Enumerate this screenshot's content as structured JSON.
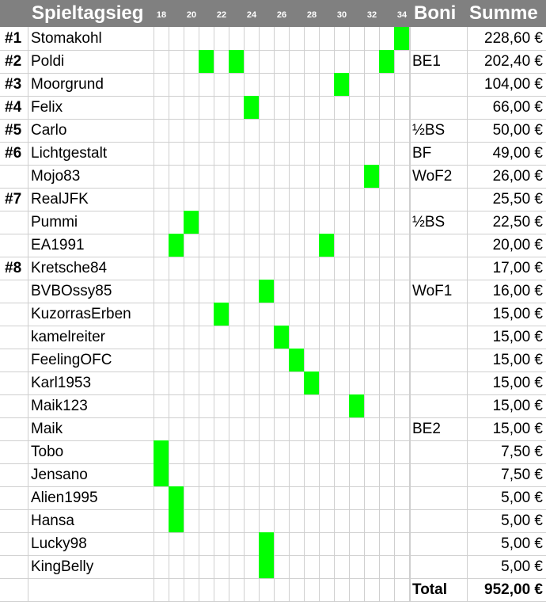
{
  "header": {
    "title": "Spieltagsieg",
    "matchdays": [
      "18",
      "20",
      "22",
      "24",
      "26",
      "28",
      "30",
      "32",
      "34"
    ],
    "boni_label": "Boni",
    "summe_label": "Summe"
  },
  "colors": {
    "header_bg": "#808080",
    "win": "#00ff00",
    "grid": "#cfcfcf"
  },
  "rows": [
    {
      "rank": "#1",
      "name": "Stomakohl",
      "bonus": "",
      "sum": "228,60 €",
      "wins": [
        34
      ]
    },
    {
      "rank": "#2",
      "name": "Poldi",
      "bonus": "BE1",
      "sum": "202,40 €",
      "wins": [
        21,
        23,
        33
      ]
    },
    {
      "rank": "#3",
      "name": "Moorgrund",
      "bonus": "",
      "sum": "104,00 €",
      "wins": [
        30
      ]
    },
    {
      "rank": "#4",
      "name": "Felix",
      "bonus": "",
      "sum": "66,00 €",
      "wins": [
        24
      ]
    },
    {
      "rank": "#5",
      "name": "Carlo",
      "bonus": "½BS",
      "sum": "50,00 €",
      "wins": []
    },
    {
      "rank": "#6",
      "name": "Lichtgestalt",
      "bonus": "BF",
      "sum": "49,00 €",
      "wins": []
    },
    {
      "rank": "",
      "name": "Mojo83",
      "bonus": "WoF2",
      "sum": "26,00 €",
      "wins": [
        32
      ]
    },
    {
      "rank": "#7",
      "name": "RealJFK",
      "bonus": "",
      "sum": "25,50 €",
      "wins": []
    },
    {
      "rank": "",
      "name": "Pummi",
      "bonus": "½BS",
      "sum": "22,50 €",
      "wins": [
        20
      ]
    },
    {
      "rank": "",
      "name": "EA1991",
      "bonus": "",
      "sum": "20,00 €",
      "wins": [
        19,
        29
      ]
    },
    {
      "rank": "#8",
      "name": "Kretsche84",
      "bonus": "",
      "sum": "17,00 €",
      "wins": []
    },
    {
      "rank": "",
      "name": "BVBOssy85",
      "bonus": "WoF1",
      "sum": "16,00 €",
      "wins": [
        25
      ]
    },
    {
      "rank": "",
      "name": "KuzorrasErben",
      "bonus": "",
      "sum": "15,00 €",
      "wins": [
        22
      ]
    },
    {
      "rank": "",
      "name": "kamelreiter",
      "bonus": "",
      "sum": "15,00 €",
      "wins": [
        26
      ]
    },
    {
      "rank": "",
      "name": "FeelingOFC",
      "bonus": "",
      "sum": "15,00 €",
      "wins": [
        27
      ]
    },
    {
      "rank": "",
      "name": "Karl1953",
      "bonus": "",
      "sum": "15,00 €",
      "wins": [
        28
      ]
    },
    {
      "rank": "",
      "name": "Maik123",
      "bonus": "",
      "sum": "15,00 €",
      "wins": [
        31
      ]
    },
    {
      "rank": "",
      "name": "Maik",
      "bonus": "BE2",
      "sum": "15,00 €",
      "wins": []
    },
    {
      "rank": "",
      "name": "Tobo",
      "bonus": "",
      "sum": "7,50 €",
      "wins": [
        18
      ]
    },
    {
      "rank": "",
      "name": "Jensano",
      "bonus": "",
      "sum": "7,50 €",
      "wins": [
        18
      ]
    },
    {
      "rank": "",
      "name": "Alien1995",
      "bonus": "",
      "sum": "5,00 €",
      "wins": [
        19
      ]
    },
    {
      "rank": "",
      "name": "Hansa",
      "bonus": "",
      "sum": "5,00 €",
      "wins": [
        19
      ]
    },
    {
      "rank": "",
      "name": "Lucky98",
      "bonus": "",
      "sum": "5,00 €",
      "wins": [
        25
      ]
    },
    {
      "rank": "",
      "name": "KingBelly",
      "bonus": "",
      "sum": "5,00 €",
      "wins": [
        25
      ]
    }
  ],
  "total": {
    "label": "Total",
    "value": "952,00 €"
  }
}
